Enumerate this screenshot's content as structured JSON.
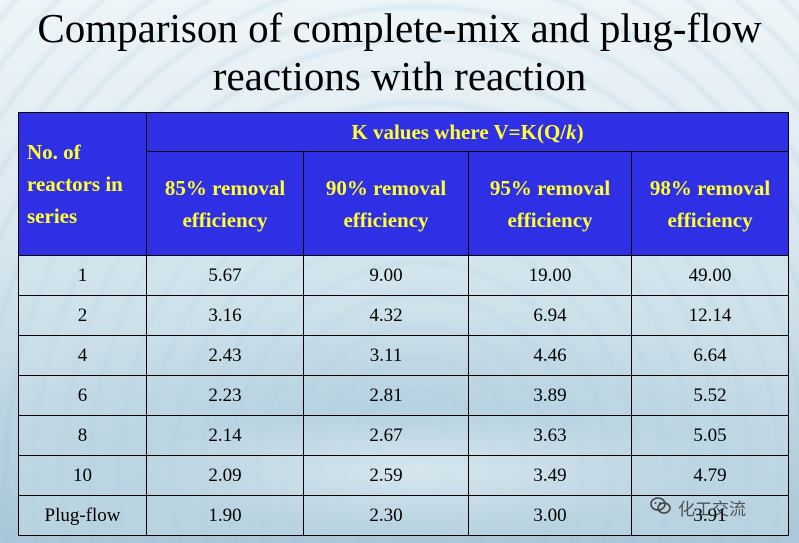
{
  "title": "Comparison of complete-mix and plug-flow reactions with reaction",
  "table": {
    "row_header": "No. of reactors in series",
    "k_header_prefix": "K values where V=K(Q/",
    "k_header_var": "k",
    "k_header_suffix": ")",
    "columns": [
      "85% removal efficiency",
      "90% removal efficiency",
      "95% removal efficiency",
      "98% removal efficiency"
    ],
    "rows": [
      {
        "label": "1",
        "values": [
          "5.67",
          "9.00",
          "19.00",
          "49.00"
        ]
      },
      {
        "label": "2",
        "values": [
          "3.16",
          "4.32",
          "6.94",
          "12.14"
        ]
      },
      {
        "label": "4",
        "values": [
          "2.43",
          "3.11",
          "4.46",
          "6.64"
        ]
      },
      {
        "label": "6",
        "values": [
          "2.23",
          "2.81",
          "3.89",
          "5.52"
        ]
      },
      {
        "label": "8",
        "values": [
          "2.14",
          "2.67",
          "3.63",
          "5.05"
        ]
      },
      {
        "label": "10",
        "values": [
          "2.09",
          "2.59",
          "3.49",
          "4.79"
        ]
      },
      {
        "label": "Plug-flow",
        "values": [
          "1.90",
          "2.30",
          "3.00",
          "3.91"
        ]
      }
    ]
  },
  "watermark": {
    "text": "化工交流",
    "icon": "wechat-icon"
  }
}
